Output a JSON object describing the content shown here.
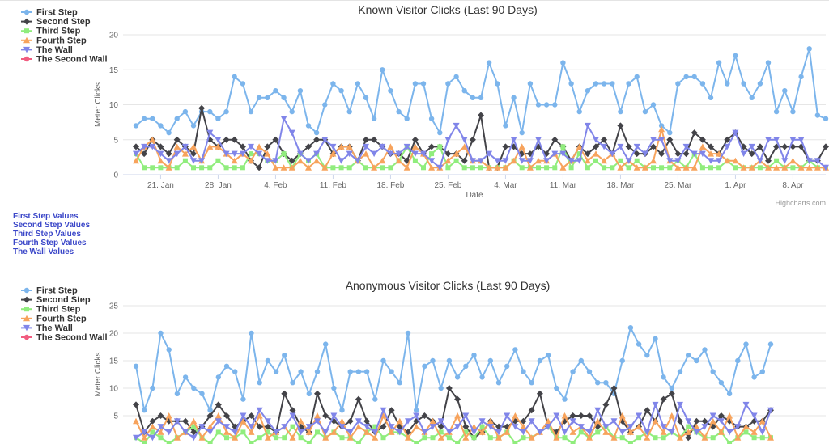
{
  "links": {
    "color": "#3a46c8",
    "items": [
      "First Step Values",
      "Second Step Values",
      "Third Step Values",
      "Fourth Step Values",
      "The Wall Values"
    ]
  },
  "chart_data": [
    {
      "type": "line",
      "title": "Known Visitor Clicks (Last 90 Days)",
      "xlabel": "Date",
      "ylabel": "Meter Clicks",
      "credits": "Highcharts.com",
      "ylim": [
        0,
        20
      ],
      "yticks": [
        0,
        5,
        10,
        15,
        20
      ],
      "grid": "horizontal",
      "legend_position": "top-left",
      "xtick_labels": [
        "21. Jan",
        "28. Jan",
        "4. Feb",
        "11. Feb",
        "18. Feb",
        "25. Feb",
        "4. Mar",
        "11. Mar",
        "18. Mar",
        "25. Mar",
        "1. Apr",
        "8. Apr"
      ],
      "xtick_indices": [
        3,
        10,
        17,
        24,
        31,
        38,
        45,
        52,
        59,
        66,
        73,
        80
      ],
      "series": [
        {
          "name": "First Step",
          "color": "#7cb5ec",
          "marker": "circle",
          "values": [
            7,
            8,
            8,
            7,
            6,
            8,
            9,
            7,
            9,
            9,
            8,
            9,
            14,
            13,
            9,
            11,
            11,
            12,
            11,
            9,
            12,
            7,
            6,
            10,
            13,
            12,
            9,
            13,
            11,
            8,
            15,
            12,
            9,
            8,
            13,
            13,
            8,
            6,
            13,
            14,
            12,
            11,
            11,
            16,
            13,
            7,
            11,
            6,
            13,
            10,
            10,
            10,
            16,
            13,
            9,
            12,
            13,
            13,
            13,
            9,
            13,
            14,
            9,
            10,
            7,
            6,
            13,
            14,
            14,
            13,
            11,
            16,
            13,
            17,
            13,
            11,
            13,
            16,
            9,
            12,
            9,
            14,
            18,
            8.5,
            8
          ]
        },
        {
          "name": "Second Step",
          "color": "#434348",
          "marker": "diamond",
          "values": [
            4,
            3,
            5,
            4,
            3,
            5,
            4,
            3,
            9.5,
            5,
            4,
            5,
            5,
            4,
            2,
            1,
            4,
            5,
            3,
            2,
            3,
            4,
            5,
            5,
            3,
            4,
            4,
            2,
            5,
            5,
            4,
            3,
            3,
            2,
            5,
            3,
            4,
            4,
            3,
            3,
            2,
            5,
            8.5,
            1,
            1,
            4,
            4,
            3,
            3,
            4,
            3,
            5,
            4,
            2,
            4,
            3,
            4,
            5,
            3,
            7,
            4,
            3,
            3,
            4,
            3,
            5,
            3,
            3,
            6,
            5,
            4,
            3,
            5,
            6,
            4,
            3,
            4,
            2,
            4,
            4,
            4,
            4,
            2,
            2,
            4
          ]
        },
        {
          "name": "Third Step",
          "color": "#90ed7d",
          "marker": "square",
          "values": [
            3,
            1,
            1,
            1,
            1,
            1,
            2,
            1,
            1,
            1,
            2,
            1,
            1,
            1,
            3,
            3,
            2,
            2,
            3,
            1,
            3,
            2,
            3,
            1,
            1,
            1,
            1,
            2,
            1,
            1,
            1,
            1,
            2,
            4,
            2,
            1,
            3,
            4,
            1,
            2,
            1,
            1,
            1,
            1,
            1,
            1,
            2,
            1,
            1,
            1,
            1,
            1,
            4,
            1,
            3,
            1,
            2,
            1,
            1,
            2,
            1,
            2,
            1,
            1,
            1,
            1,
            2,
            1,
            3,
            1,
            1,
            1,
            2,
            1,
            1,
            1,
            1,
            1,
            2,
            1,
            1,
            1,
            2,
            1,
            1
          ]
        },
        {
          "name": "Fourth Step",
          "color": "#f7a35c",
          "marker": "triangle",
          "values": [
            2,
            4,
            5,
            2,
            1,
            4,
            3,
            4,
            2,
            4,
            4,
            3,
            2,
            3,
            2,
            4,
            3,
            1,
            1,
            1,
            2,
            1,
            2,
            1,
            3,
            4,
            4,
            2,
            3,
            1,
            2,
            4,
            2,
            1,
            4,
            3,
            1,
            1,
            2,
            3,
            4,
            2,
            2,
            1,
            1,
            1,
            2,
            4,
            1,
            2,
            2,
            3,
            1,
            2,
            4,
            2,
            3,
            2,
            3,
            1,
            2,
            1,
            1,
            2,
            6.5,
            2,
            1,
            1,
            1,
            4,
            3,
            3,
            2,
            2,
            1,
            1,
            2,
            1,
            1,
            1,
            2,
            1,
            1,
            1,
            1
          ]
        },
        {
          "name": "The Wall",
          "color": "#8085e9",
          "marker": "triangle-down",
          "values": [
            3,
            4,
            4,
            3,
            2,
            3,
            4,
            2,
            2,
            6,
            5,
            3,
            3,
            3,
            4,
            3,
            2,
            2,
            8,
            6,
            3,
            2,
            3,
            5,
            4,
            2,
            3,
            2,
            4,
            3,
            4,
            3,
            3,
            4,
            3,
            3,
            2,
            1,
            5,
            7,
            5,
            2,
            2,
            3,
            2,
            2,
            5,
            2,
            2,
            5,
            2,
            3,
            3,
            2,
            2,
            7,
            5,
            4,
            3,
            4,
            2,
            4,
            3,
            5,
            5,
            2,
            2,
            4,
            3,
            3,
            2,
            2,
            4,
            6,
            3,
            4,
            2,
            5,
            5,
            2,
            5,
            5,
            2,
            2,
            1
          ]
        },
        {
          "name": "The Second Wall",
          "color": "#f15c80",
          "marker": "circle",
          "values": []
        }
      ]
    },
    {
      "type": "line",
      "title": "Anonymous Visitor Clicks (Last 90 Days)",
      "ylabel": "Meter Clicks",
      "ylim": [
        0,
        25
      ],
      "yticks": [
        5,
        10,
        15,
        20,
        25
      ],
      "grid": "horizontal",
      "legend_position": "top-left",
      "series": [
        {
          "name": "First Step",
          "color": "#7cb5ec",
          "marker": "circle",
          "values": [
            14,
            6,
            10,
            20,
            17,
            9,
            12,
            10,
            9,
            6,
            12,
            14,
            13,
            8,
            20,
            11,
            15,
            13,
            16,
            11,
            13,
            9,
            13,
            18,
            10,
            6,
            13,
            13,
            13,
            8,
            15,
            13,
            11,
            20,
            6,
            14,
            15,
            10,
            15,
            12,
            14,
            16,
            12,
            15,
            11,
            14,
            17,
            13,
            11,
            15,
            16,
            10,
            8,
            13,
            15,
            13,
            11,
            11,
            9,
            15,
            21,
            18,
            16,
            19,
            12,
            10,
            13,
            16,
            15,
            17,
            13,
            11,
            9,
            15,
            18,
            12,
            13,
            18
          ]
        },
        {
          "name": "Second Step",
          "color": "#434348",
          "marker": "diamond",
          "values": [
            7,
            2,
            4,
            5,
            4,
            4,
            4,
            2,
            3,
            5,
            7,
            5,
            3,
            4,
            5,
            3,
            3,
            2,
            9,
            6,
            3,
            2,
            9,
            5,
            4,
            3,
            4,
            8,
            4,
            2,
            3,
            6,
            3,
            2,
            4,
            5,
            4,
            3,
            10,
            8,
            3,
            1,
            2,
            4,
            3,
            3,
            4,
            4,
            6,
            9,
            3,
            2,
            4,
            5,
            5,
            5,
            3,
            7,
            10,
            4,
            2,
            3,
            6,
            4,
            8,
            9,
            4,
            1,
            4,
            4,
            3,
            5,
            4,
            3,
            3,
            4,
            4,
            6
          ]
        },
        {
          "name": "Third Step",
          "color": "#90ed7d",
          "marker": "square",
          "values": [
            1,
            0,
            2,
            1,
            0,
            1,
            2,
            3,
            1,
            0,
            2,
            1,
            1,
            2,
            0,
            1,
            2,
            1,
            1,
            3,
            1,
            0,
            2,
            1,
            2,
            1,
            1,
            0,
            2,
            3,
            1,
            2,
            2,
            1,
            0,
            1,
            1,
            2,
            1,
            0,
            2,
            1,
            3,
            1,
            1,
            2,
            0,
            1,
            1,
            2,
            3,
            1,
            1,
            0,
            2,
            1,
            2,
            3,
            1,
            1,
            0,
            1,
            2,
            1,
            1,
            2,
            1,
            3,
            2,
            1,
            1,
            2,
            0,
            1,
            2,
            1,
            1,
            1
          ]
        },
        {
          "name": "Fourth Step",
          "color": "#f7a35c",
          "marker": "triangle",
          "values": [
            4,
            1,
            3,
            2,
            5,
            1,
            2,
            4,
            1,
            3,
            5,
            2,
            1,
            4,
            2,
            5,
            1,
            2,
            3,
            1,
            4,
            2,
            5,
            1,
            2,
            4,
            1,
            3,
            2,
            1,
            5,
            2,
            4,
            1,
            3,
            2,
            4,
            1,
            2,
            5,
            1,
            3,
            2,
            4,
            1,
            2,
            5,
            3,
            1,
            2,
            4,
            1,
            5,
            2,
            3,
            1,
            4,
            2,
            1,
            5,
            2,
            3,
            1,
            4,
            2,
            5,
            1,
            2,
            3,
            1,
            4,
            2,
            5,
            1,
            3,
            2,
            4,
            1
          ]
        },
        {
          "name": "The Wall",
          "color": "#8085e9",
          "marker": "triangle-down",
          "values": [
            1,
            2,
            1,
            3,
            2,
            4,
            2,
            1,
            3,
            2,
            4,
            3,
            2,
            5,
            3,
            6,
            4,
            2,
            3,
            5,
            2,
            3,
            4,
            2,
            5,
            3,
            2,
            4,
            3,
            2,
            6,
            3,
            2,
            4,
            5,
            2,
            3,
            4,
            2,
            3,
            5,
            2,
            4,
            3,
            2,
            5,
            3,
            2,
            4,
            2,
            3,
            5,
            2,
            4,
            3,
            2,
            6,
            3,
            4,
            2,
            3,
            5,
            2,
            7,
            3,
            2,
            7,
            4,
            2,
            3,
            5,
            4,
            2,
            3,
            7,
            5,
            2,
            6
          ]
        },
        {
          "name": "The Second Wall",
          "color": "#f15c80",
          "marker": "circle",
          "values": []
        }
      ]
    }
  ]
}
